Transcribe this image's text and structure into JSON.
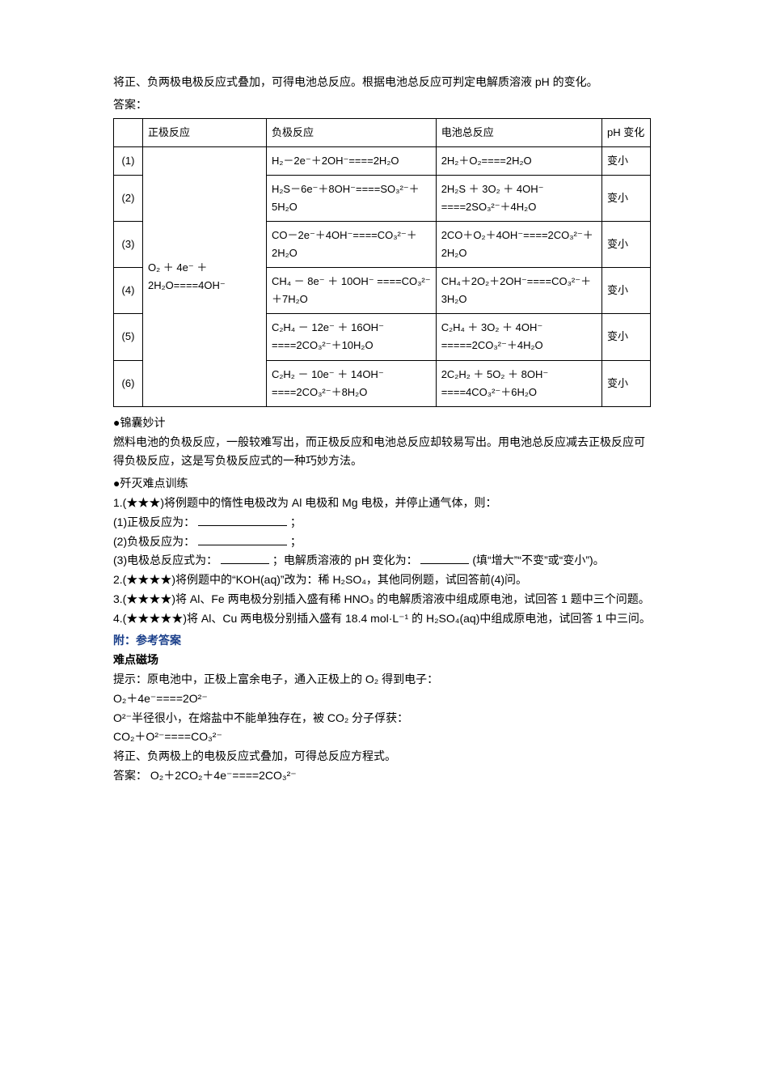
{
  "intro1": "将正、负两极电极反应式叠加，可得电池总反应。根据电池总反应可判定电解质溶液 pH 的变化。",
  "answer_label": "答案：",
  "table": {
    "headers": {
      "h0": "",
      "h1": "正极反应",
      "h2": "负极反应",
      "h3": "电池总反应",
      "h4": "pH 变化"
    },
    "positive": "O₂ ＋ 4e⁻ ＋ 2H₂O====4OH⁻",
    "rows": [
      {
        "n": "(1)",
        "neg": "H₂－2e⁻＋2OH⁻====2H₂O",
        "tot": "2H₂＋O₂====2H₂O",
        "ph": "变小"
      },
      {
        "n": "(2)",
        "neg": "H₂S－6e⁻＋8OH⁻====SO₃²⁻＋5H₂O",
        "tot": "2H₂S ＋ 3O₂ ＋ 4OH⁻ ====2SO₃²⁻＋4H₂O",
        "ph": "变小"
      },
      {
        "n": "(3)",
        "neg": "CO－2e⁻＋4OH⁻====CO₃²⁻＋2H₂O",
        "tot": "2CO＋O₂＋4OH⁻====2CO₃²⁻＋2H₂O",
        "ph": "变小"
      },
      {
        "n": "(4)",
        "neg": "CH₄ － 8e⁻ ＋ 10OH⁻ ====CO₃²⁻＋7H₂O",
        "tot": "CH₄＋2O₂＋2OH⁻====CO₃²⁻＋3H₂O",
        "ph": "变小"
      },
      {
        "n": "(5)",
        "neg": "C₂H₄ － 12e⁻ ＋ 16OH⁻ ====2CO₃²⁻＋10H₂O",
        "tot": "C₂H₄ ＋ 3O₂ ＋ 4OH⁻ =====2CO₃²⁻＋4H₂O",
        "ph": "变小"
      },
      {
        "n": "(6)",
        "neg": "C₂H₂ － 10e⁻ ＋ 14OH⁻ ====2CO₃²⁻＋8H₂O",
        "tot": "2C₂H₂ ＋ 5O₂ ＋ 8OH⁻ ====4CO₃²⁻＋6H₂O",
        "ph": "变小"
      }
    ]
  },
  "tip_heading": "●锦囊妙计",
  "tip_body": "燃料电池的负极反应，一般较难写出，而正极反应和电池总反应却较易写出。用电池总反应减去正极反应可得负极反应，这是写负极反应式的一种巧妙方法。",
  "train_heading": "●歼灭难点训练",
  "q1_intro": "1.(★★★)将例题中的惰性电极改为 Al 电极和 Mg 电极，并停止通气体，则：",
  "q1_1": "(1)正极反应为：",
  "q1_2": "(2)负极反应为：",
  "q1_3a": "(3)电极总反应式为：",
  "q1_3b": "；电解质溶液的 pH 变化为：",
  "q1_3c": "(填“增大”“不变”或“变小”)。",
  "semi": "；",
  "q2": "2.(★★★★)将例题中的“KOH(aq)”改为：稀 H₂SO₄，其他同例题，试回答前(4)问。",
  "q3": "3.(★★★★)将 Al、Fe 两电极分别插入盛有稀 HNO₃ 的电解质溶液中组成原电池，试回答 1 题中三个问题。",
  "q4": "4.(★★★★★)将 Al、Cu 两电极分别插入盛有 18.4 mol·L⁻¹ 的 H₂SO₄(aq)中组成原电池，试回答 1 中三问。",
  "ref_heading": "附：参考答案",
  "field_heading": "难点磁场",
  "hint1": "提示：原电池中，正极上富余电子，通入正极上的 O₂ 得到电子：",
  "eq1": "O₂＋4e⁻====2O²⁻",
  "hint2": "O²⁻半径很小，在熔盐中不能单独存在，被 CO₂ 分子俘获：",
  "eq2": "CO₂＋O²⁻====CO₃²⁻",
  "hint3": "将正、负两极上的电极反应式叠加，可得总反应方程式。",
  "ans_final_label": "答案：",
  "ans_final_eq": "O₂＋2CO₂＋4e⁻====2CO₃²⁻"
}
